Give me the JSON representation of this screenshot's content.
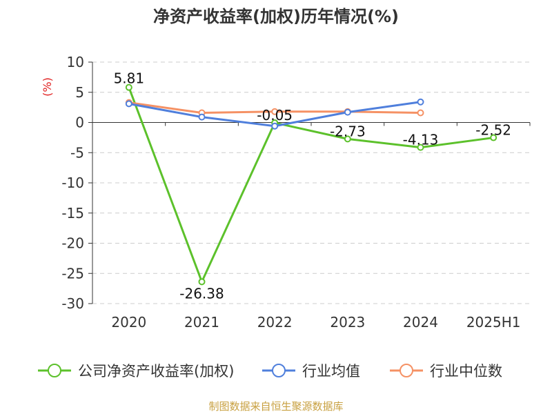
{
  "chart_data": {
    "type": "line",
    "title": "净资产收益率(加权)历年情况(%)",
    "ylabel": "(%)",
    "categories": [
      "2020",
      "2021",
      "2022",
      "2023",
      "2024",
      "2025H1"
    ],
    "ylim": [
      -30,
      10
    ],
    "yticks": [
      10,
      5,
      0,
      -5,
      -10,
      -15,
      -20,
      -25,
      -30
    ],
    "grid": true,
    "legend_position": "bottom",
    "series": [
      {
        "name": "公司净资产收益率(加权)",
        "color": "#5cc12b",
        "values": [
          5.81,
          -26.38,
          -0.05,
          -2.73,
          -4.13,
          -2.52
        ],
        "labels": [
          "5.81",
          "-26.38",
          "-0.05",
          "-2.73",
          "-4.13",
          "-2.52"
        ]
      },
      {
        "name": "行业均值",
        "color": "#4f7fdc",
        "values": [
          3.1,
          0.9,
          -0.6,
          1.7,
          3.4,
          null
        ]
      },
      {
        "name": "行业中位数",
        "color": "#f59164",
        "values": [
          3.3,
          1.6,
          1.8,
          1.8,
          1.6,
          null
        ]
      }
    ]
  },
  "source": "制图数据来自恒生聚源数据库"
}
